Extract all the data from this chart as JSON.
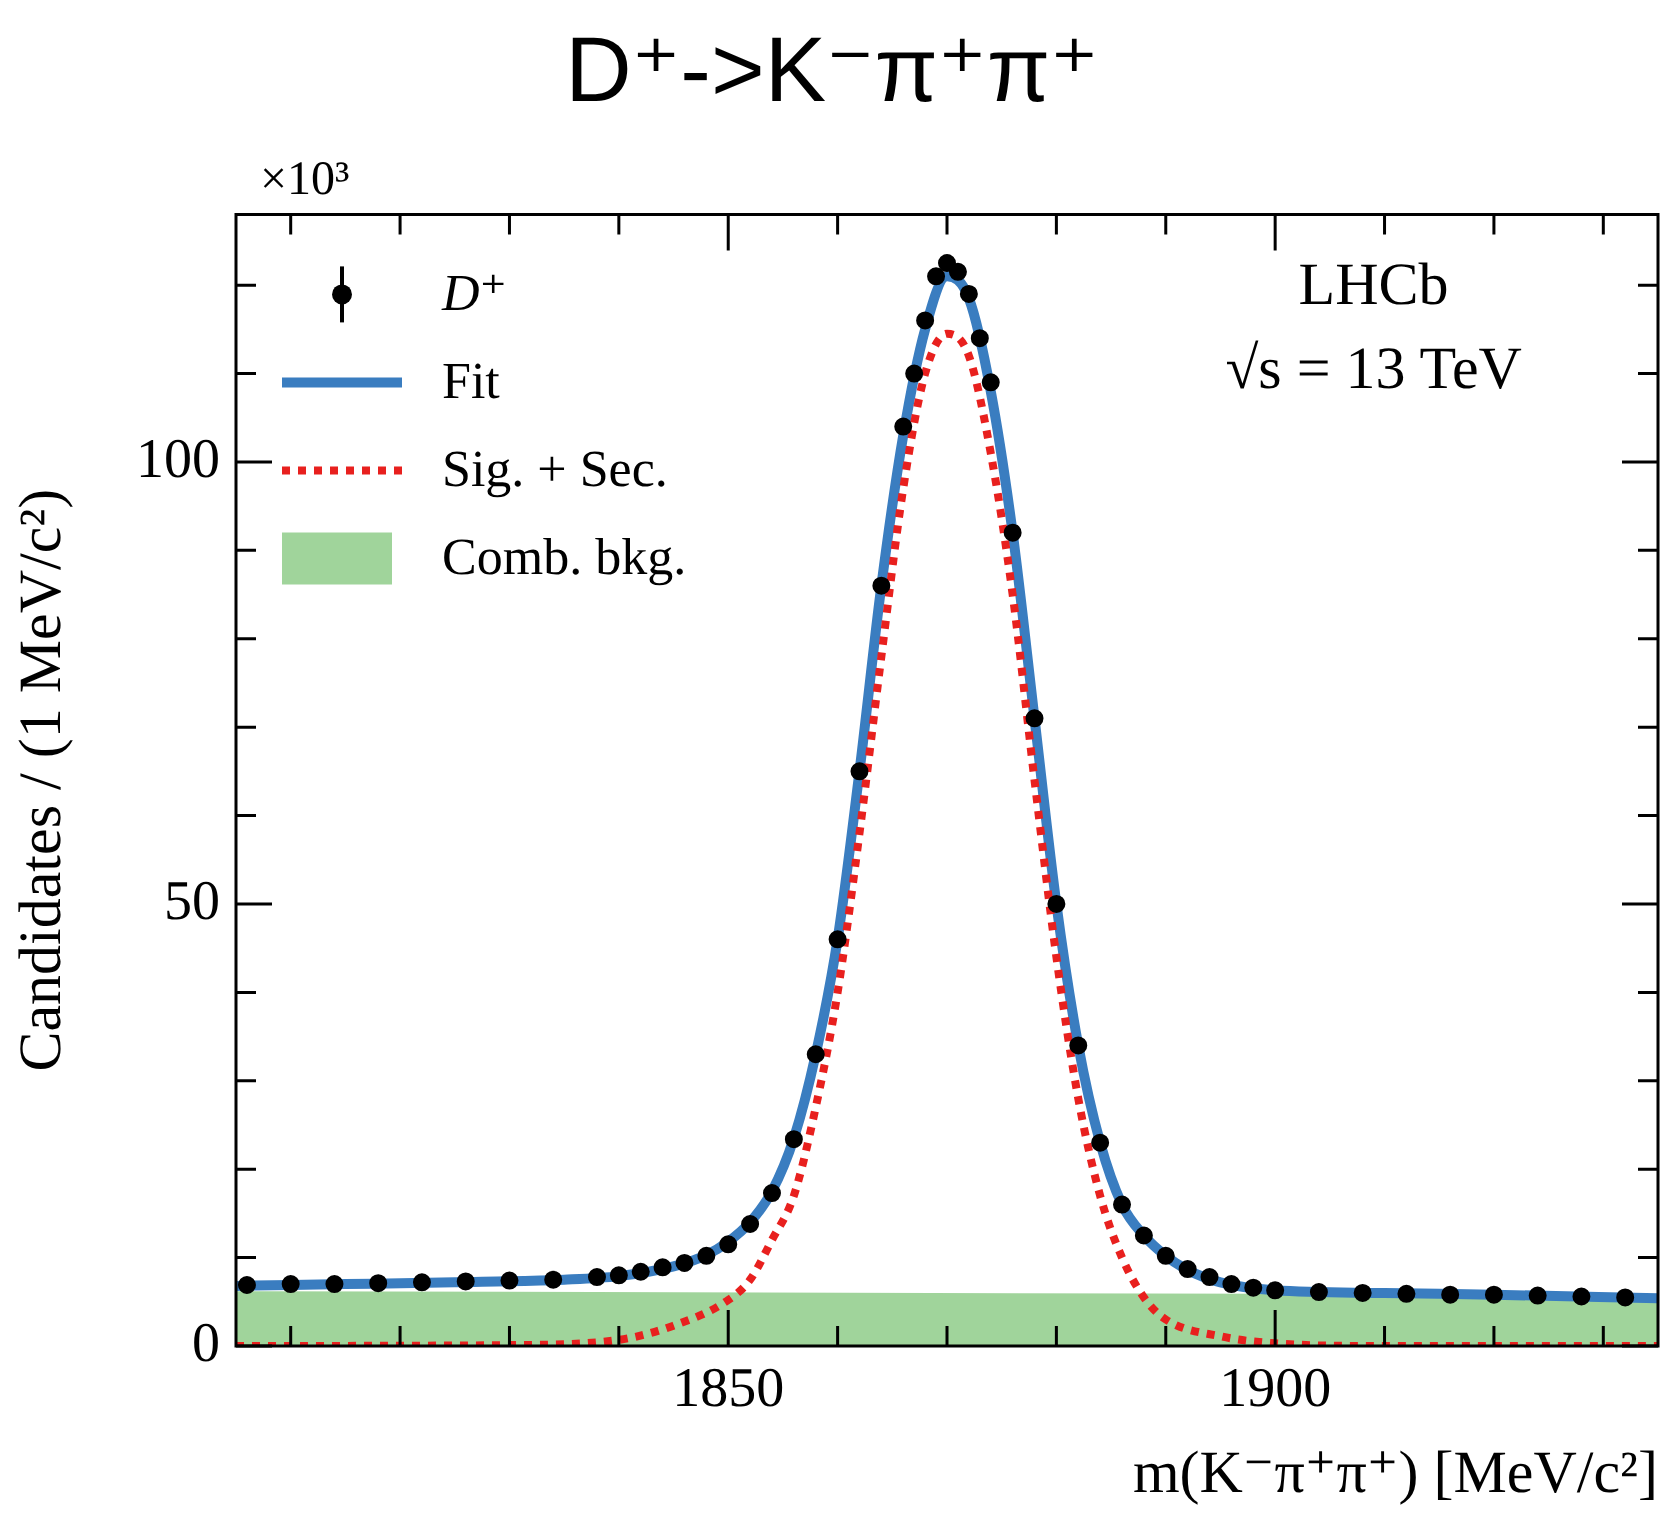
{
  "chart_data": {
    "type": "line",
    "title": "D⁺->K⁻π⁺π⁺",
    "xlabel": "m(K⁻π⁺π⁺) [MeV/c²]",
    "ylabel": "Candidates / (1 MeV/c²)",
    "xlim": [
      1805,
      1935
    ],
    "xticks": [
      {
        "value": 1810,
        "label": null
      },
      {
        "value": 1820,
        "label": null
      },
      {
        "value": 1830,
        "label": null
      },
      {
        "value": 1840,
        "label": null
      },
      1850,
      {
        "value": 1860,
        "label": null
      },
      {
        "value": 1870,
        "label": null
      },
      {
        "value": 1880,
        "label": null
      },
      {
        "value": 1890,
        "label": null
      },
      1900,
      {
        "value": 1910,
        "label": null
      },
      {
        "value": 1920,
        "label": null
      },
      {
        "value": 1930,
        "label": null
      }
    ],
    "ylim": [
      0,
      128
    ],
    "yticks": [
      0,
      {
        "value": 10,
        "label": null
      },
      {
        "value": 20,
        "label": null
      },
      {
        "value": 30,
        "label": null
      },
      {
        "value": 40,
        "label": null
      },
      50,
      {
        "value": 60,
        "label": null
      },
      {
        "value": 70,
        "label": null
      },
      {
        "value": 80,
        "label": null
      },
      {
        "value": 90,
        "label": null
      },
      100,
      {
        "value": 110,
        "label": null
      },
      {
        "value": 120,
        "label": null
      }
    ],
    "grid": false,
    "legend": "top left",
    "annotations": [
      "×10³",
      "LHCb",
      "√s = 13 TeV"
    ],
    "series": [
      {
        "name": "Comb. bkg.",
        "type": "area",
        "color": "#a0d49b",
        "x": [
          1805,
          1935
        ],
        "values": [
          6.2,
          5.8
        ]
      },
      {
        "name": "D⁺",
        "type": "scatter",
        "marker": "circle",
        "color": "#000000",
        "x": [
          1806,
          1810,
          1814,
          1818,
          1822,
          1826,
          1830,
          1834,
          1838,
          1840,
          1842,
          1844,
          1846,
          1848,
          1850,
          1852,
          1854,
          1856,
          1858,
          1860,
          1862,
          1864,
          1866,
          1867,
          1868,
          1869,
          1870,
          1871,
          1872,
          1873,
          1874,
          1876,
          1878,
          1880,
          1882,
          1884,
          1886,
          1888,
          1890,
          1892,
          1894,
          1896,
          1898,
          1900,
          1904,
          1908,
          1912,
          1916,
          1920,
          1924,
          1928,
          1932
        ],
        "values": [
          6.9,
          7.0,
          7.0,
          7.1,
          7.2,
          7.3,
          7.4,
          7.5,
          7.8,
          8.0,
          8.4,
          8.9,
          9.4,
          10.2,
          11.5,
          13.8,
          17.3,
          23.4,
          33,
          46,
          65,
          86,
          104,
          110,
          116,
          121,
          122.5,
          121.5,
          119,
          114,
          109,
          92,
          71,
          50,
          34,
          23,
          16,
          12.5,
          10.2,
          8.7,
          7.8,
          7.0,
          6.6,
          6.3,
          6.1,
          6.0,
          5.9,
          5.8,
          5.8,
          5.7,
          5.6,
          5.5
        ]
      },
      {
        "name": "Fit",
        "type": "line",
        "line_style": "solid",
        "color": "#3a7dc0",
        "x": [
          1805,
          1815,
          1825,
          1835,
          1840,
          1845,
          1848,
          1850,
          1852,
          1854,
          1856,
          1858,
          1860,
          1862,
          1864,
          1866,
          1868,
          1870,
          1872,
          1874,
          1876,
          1878,
          1880,
          1882,
          1884,
          1886,
          1888,
          1890,
          1892,
          1895,
          1900,
          1910,
          1920,
          1935
        ],
        "values": [
          6.8,
          7.0,
          7.2,
          7.5,
          7.9,
          9.0,
          10.3,
          11.8,
          14.0,
          17.5,
          23.5,
          33,
          46,
          65,
          86,
          103,
          115,
          121,
          118.5,
          108,
          92,
          71,
          50,
          34,
          23,
          16,
          12.5,
          10.2,
          8.6,
          7.2,
          6.3,
          6.0,
          5.8,
          5.4
        ]
      },
      {
        "name": "Sig. + Sec.",
        "type": "line",
        "line_style": "dotted",
        "color": "#e8201e",
        "x": [
          1805,
          1830,
          1840,
          1845,
          1850,
          1852,
          1854,
          1856,
          1858,
          1860,
          1862,
          1864,
          1866,
          1868,
          1870,
          1872,
          1874,
          1876,
          1878,
          1880,
          1882,
          1884,
          1886,
          1888,
          1890,
          1895,
          1900,
          1910,
          1935
        ],
        "values": [
          0,
          0.1,
          0.7,
          2.3,
          5.2,
          7.5,
          12,
          17,
          27,
          40,
          58,
          78,
          97,
          110,
          114.5,
          112,
          101,
          85,
          64,
          44,
          28,
          17,
          10,
          5.5,
          3,
          1.1,
          0.3,
          0,
          0
        ]
      }
    ]
  }
}
